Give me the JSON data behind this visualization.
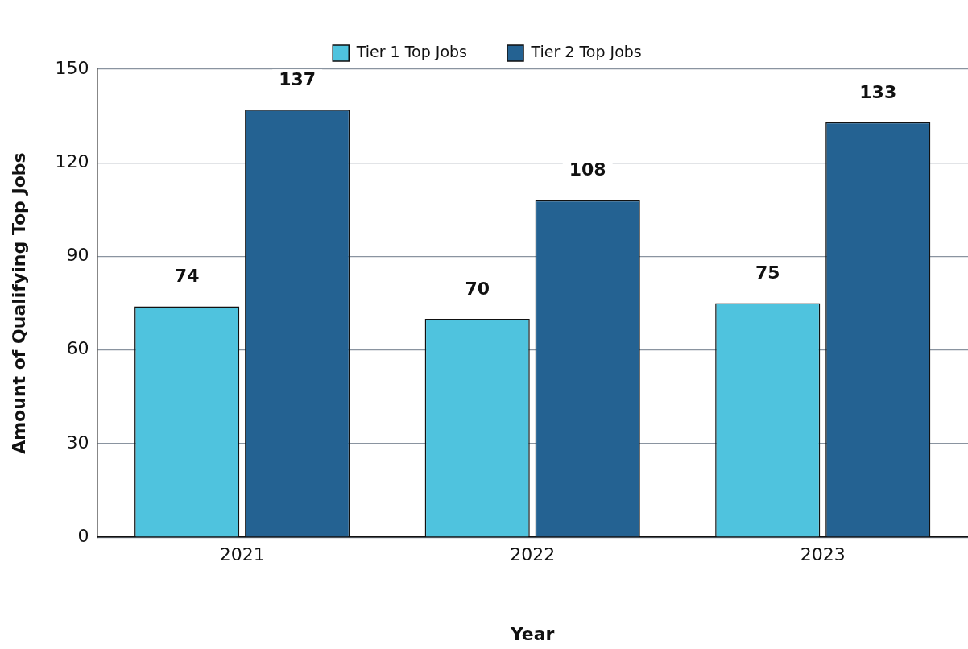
{
  "chart_data": {
    "type": "bar",
    "xlabel": "Year",
    "ylabel": "Amount of Qualifying Top Jobs",
    "categories": [
      "2021",
      "2022",
      "2023"
    ],
    "series": [
      {
        "name": "Tier 1 Top Jobs",
        "color": "#4fc3de",
        "values": [
          74,
          70,
          75
        ]
      },
      {
        "name": "Tier 2 Top Jobs",
        "color": "#246292",
        "values": [
          137,
          108,
          133
        ]
      }
    ],
    "ylim": [
      0,
      150
    ],
    "yticks": [
      0,
      30,
      60,
      90,
      120,
      150
    ],
    "grid": "y",
    "legend": "top",
    "data_labels": true
  }
}
